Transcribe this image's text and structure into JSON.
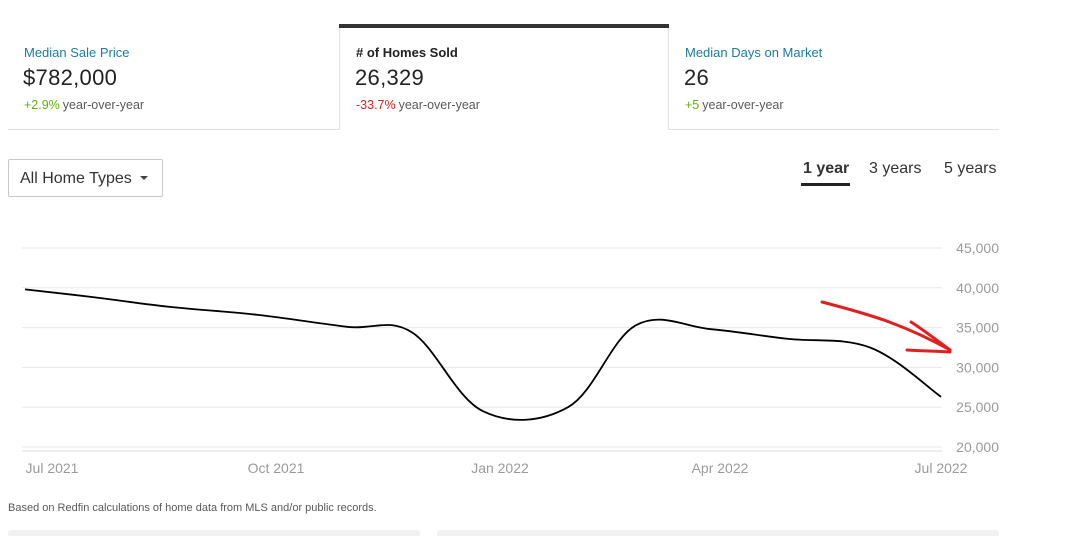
{
  "tabs": {
    "price": {
      "label": "Median Sale Price",
      "value": "$782,000",
      "change": "+2.9%",
      "change_suffix": "year-over-year",
      "change_color": "#5ab400"
    },
    "sold": {
      "label": "# of Homes Sold",
      "value": "26,329",
      "change": "-33.7%",
      "change_suffix": "year-over-year",
      "change_color": "#e02020"
    },
    "dom": {
      "label": "Median Days on Market",
      "value": "26",
      "change": "+5",
      "change_suffix": "year-over-year",
      "change_color": "#5ab400"
    }
  },
  "filter": {
    "selected": "All Home Types",
    "icon": "caret-down-icon"
  },
  "ranges": [
    {
      "label": "1 year",
      "active": true
    },
    {
      "label": "3 years",
      "active": false
    },
    {
      "label": "5 years",
      "active": false
    }
  ],
  "footnote": "Based on Redfin calculations of home data from MLS and/or public records.",
  "chart_data": {
    "type": "line",
    "title": "",
    "xlabel": "",
    "ylabel": "",
    "ylim": [
      20000,
      45000
    ],
    "yticks": [
      "45,000",
      "40,000",
      "35,000",
      "30,000",
      "25,000",
      "20,000"
    ],
    "xticks": [
      "Jul 2021",
      "Oct 2021",
      "Jan 2022",
      "Apr 2022",
      "Jul 2022"
    ],
    "x": [
      "Jul 2021",
      "Aug 2021",
      "Sep 2021",
      "Oct 2021",
      "Nov 2021",
      "Dec 2021",
      "Jan 2022",
      "Feb 2022",
      "Mar 2022",
      "Apr 2022",
      "May 2022",
      "Jun 2022",
      "Jul 2022"
    ],
    "series": [
      {
        "values": [
          39800,
          38800,
          37600,
          36600,
          35100,
          34400,
          24500,
          25000,
          35300,
          34800,
          33600,
          32500,
          26300
        ]
      }
    ],
    "line_color": "#000000",
    "annotation": {
      "type": "hand-drawn arrow",
      "color": "#e02020"
    },
    "grid": true
  }
}
